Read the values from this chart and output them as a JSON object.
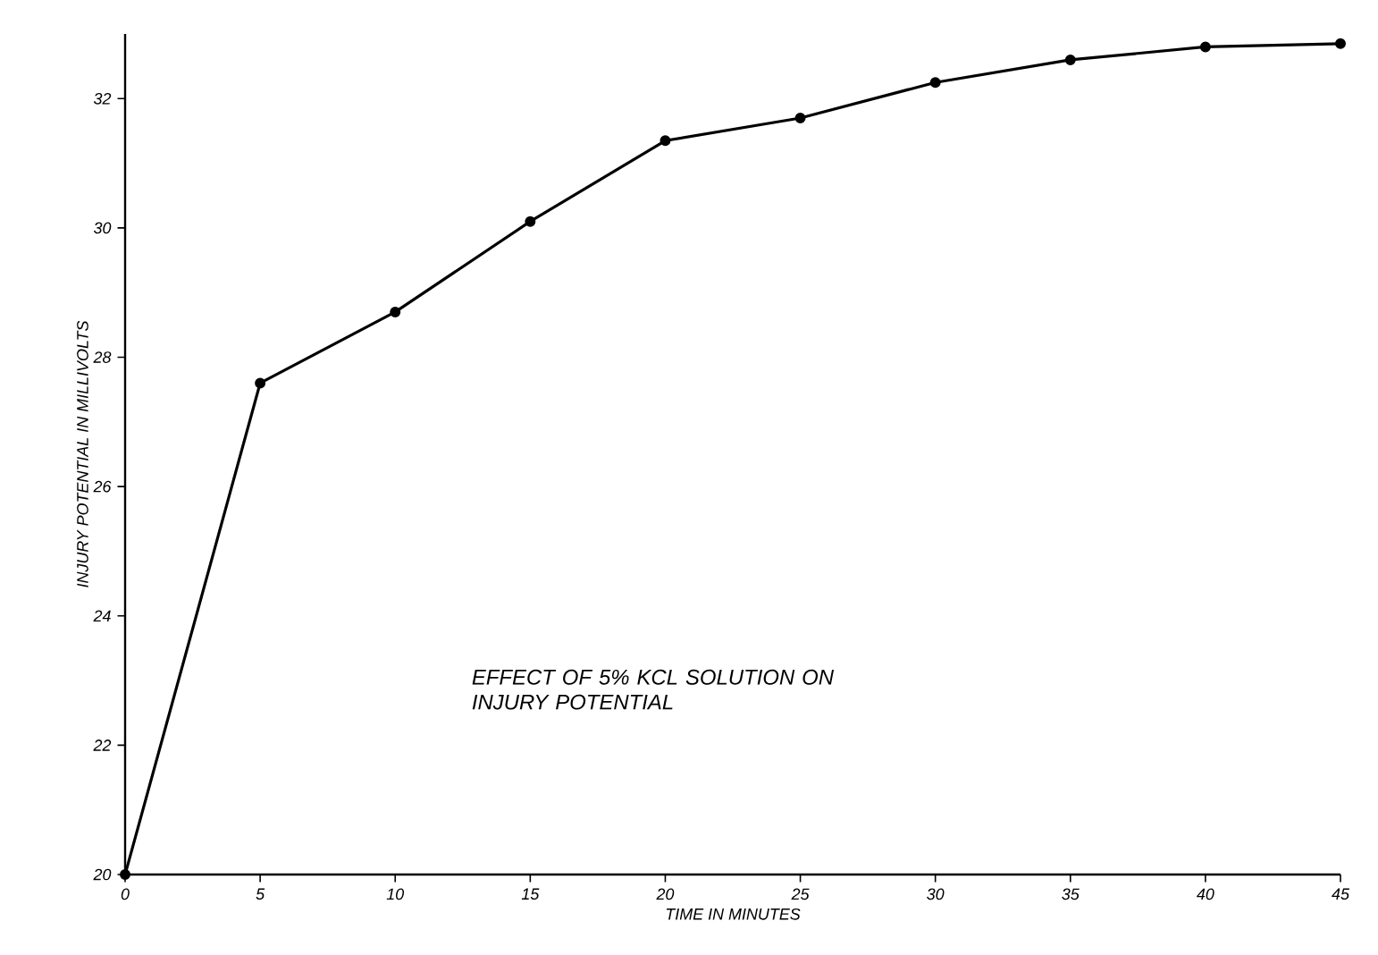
{
  "chart_data": {
    "type": "line",
    "xlabel": "TIME IN MINUTES",
    "ylabel": "INJURY POTENTIAL IN MILLIVOLTS",
    "annotations": [
      "EFFECT OF 5% KCL SOLUTION ON INJURY POTENTIAL"
    ],
    "x": [
      0,
      5,
      10,
      15,
      20,
      25,
      30,
      35,
      40,
      45
    ],
    "series": [
      {
        "color": "#000000",
        "values": [
          20,
          27.6,
          28.7,
          30.1,
          31.35,
          31.7,
          32.25,
          32.6,
          32.8,
          32.85
        ]
      }
    ],
    "xlim": [
      0,
      45
    ],
    "xticks": [
      0,
      5,
      10,
      15,
      20,
      25,
      30,
      35,
      40,
      45
    ],
    "ylim": [
      20,
      33
    ],
    "yticks": [
      20,
      22,
      24,
      26,
      28,
      30,
      32
    ],
    "grid": false,
    "marker": "circle",
    "line_style": "solid"
  }
}
